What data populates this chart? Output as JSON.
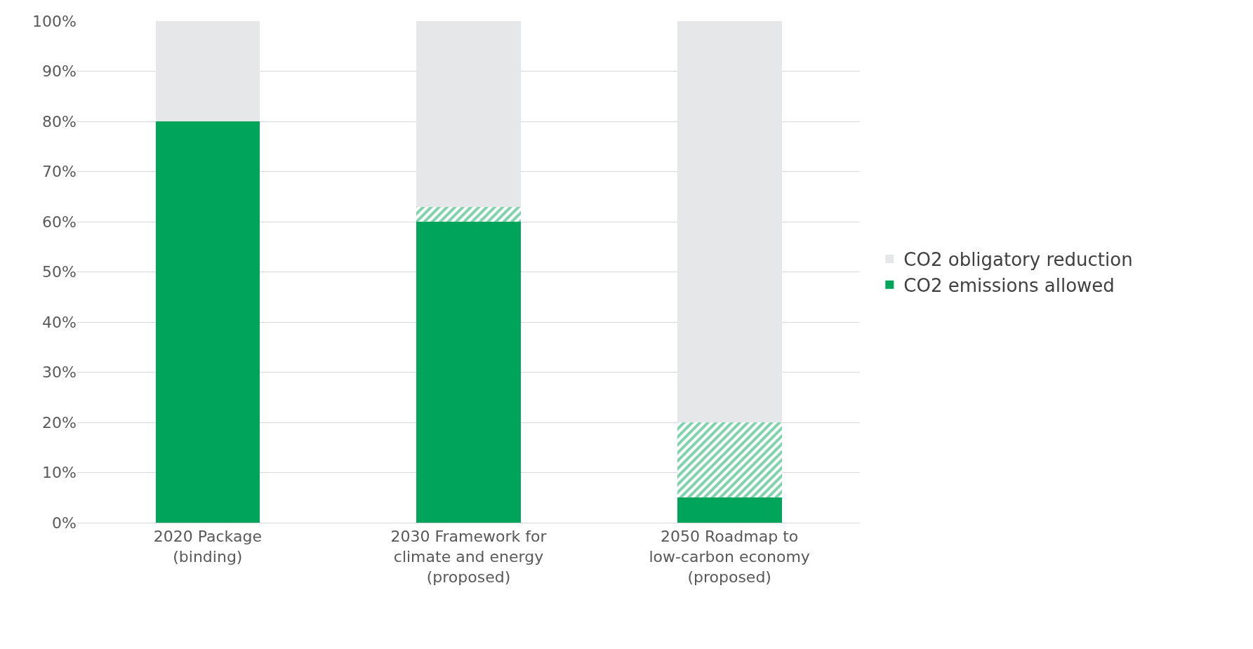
{
  "chart_data": {
    "type": "bar",
    "stacked": true,
    "categories": [
      "2020 Package\n(binding)",
      "2030 Framework for\nclimate and energy\n(proposed)",
      "2050 Roadmap to\nlow-carbon economy\n(proposed)"
    ],
    "series": [
      {
        "name": "CO2 emissions allowed",
        "color": "#00a45a",
        "values": [
          80,
          60,
          5
        ]
      },
      {
        "color": "#00a45a",
        "values": [
          0,
          3,
          15
        ]
      },
      {
        "name": "CO2 obligatory reduction",
        "color": "#e6e7e9",
        "values": [
          20,
          37,
          80
        ]
      }
    ],
    "ylim": [
      0,
      100
    ],
    "yticks": [
      {
        "value": 0,
        "label": "0%"
      },
      {
        "value": 10,
        "label": "10%"
      },
      {
        "value": 20,
        "label": "20%"
      },
      {
        "value": 30,
        "label": "30%"
      },
      {
        "value": 40,
        "label": "40%"
      },
      {
        "value": 50,
        "label": "50%"
      },
      {
        "value": 60,
        "label": "60%"
      },
      {
        "value": 70,
        "label": "70%"
      },
      {
        "value": 80,
        "label": "80%"
      },
      {
        "value": 90,
        "label": "90%"
      },
      {
        "value": 100,
        "label": "100%"
      }
    ],
    "grid": "y",
    "legend": "right"
  }
}
